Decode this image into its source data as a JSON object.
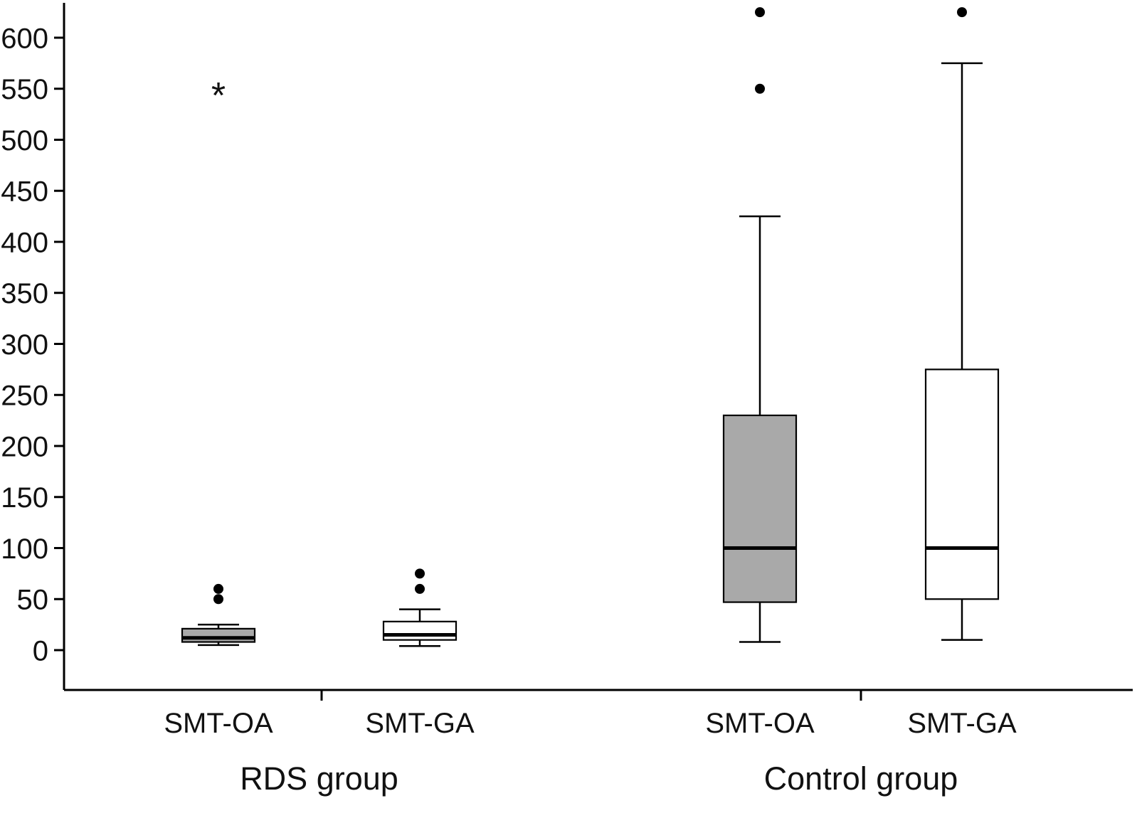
{
  "figure": {
    "background": "#ffffff",
    "axis_color": "#000000"
  },
  "chart_data": {
    "type": "boxplot",
    "title": "",
    "xlabel": "",
    "ylabel": "",
    "ylim": [
      -40,
      640
    ],
    "yticks": [
      0,
      50,
      100,
      150,
      200,
      250,
      300,
      350,
      400,
      450,
      500,
      550,
      600
    ],
    "grid": false,
    "legend": "none",
    "marker_colors": {
      "outlier": "#000000",
      "extreme_outlier": "#000000"
    },
    "groups": [
      {
        "label": "RDS group",
        "boxes": [
          {
            "label": "SMT-OA",
            "fill": "#a9a9a9",
            "whisker_low": 5,
            "q1": 8,
            "median": 12,
            "q3": 21,
            "whisker_high": 25,
            "outliers": [
              50,
              60
            ],
            "extreme_outliers": [
              550
            ]
          },
          {
            "label": "SMT-GA",
            "fill": "#ffffff",
            "whisker_low": 4,
            "q1": 10,
            "median": 15,
            "q3": 28,
            "whisker_high": 40,
            "outliers": [
              60,
              75
            ],
            "extreme_outliers": []
          }
        ]
      },
      {
        "label": "Control group",
        "boxes": [
          {
            "label": "SMT-OA",
            "fill": "#a9a9a9",
            "whisker_low": 8,
            "q1": 47,
            "median": 100,
            "q3": 230,
            "whisker_high": 425,
            "outliers": [
              550,
              625
            ],
            "extreme_outliers": []
          },
          {
            "label": "SMT-GA",
            "fill": "#ffffff",
            "whisker_low": 10,
            "q1": 50,
            "median": 100,
            "q3": 275,
            "whisker_high": 575,
            "outliers": [
              625
            ],
            "extreme_outliers": []
          }
        ]
      }
    ]
  }
}
